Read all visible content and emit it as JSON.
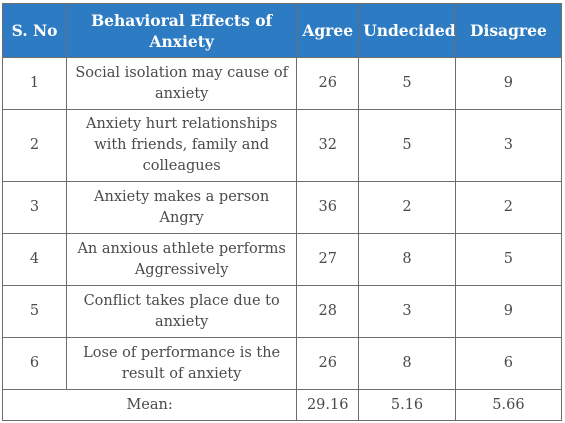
{
  "table": {
    "headers": {
      "sno": "S. No",
      "effect": "Behavioral Effects of Anxiety",
      "agree": "Agree",
      "undecided": "Undecided",
      "disagree": "Disagree"
    },
    "rows": [
      {
        "sno": "1",
        "effect": "Social isolation may cause of anxiety",
        "agree": "26",
        "undecided": "5",
        "disagree": "9"
      },
      {
        "sno": "2",
        "effect": "Anxiety hurt relationships with friends, family and colleagues",
        "agree": "32",
        "undecided": "5",
        "disagree": "3"
      },
      {
        "sno": "3",
        "effect": "Anxiety makes a person Angry",
        "agree": "36",
        "undecided": "2",
        "disagree": "2"
      },
      {
        "sno": "4",
        "effect": "An anxious athlete performs Aggressively",
        "agree": "27",
        "undecided": "8",
        "disagree": "5"
      },
      {
        "sno": "5",
        "effect": "Conflict takes place due to anxiety",
        "agree": "28",
        "undecided": "3",
        "disagree": "9"
      },
      {
        "sno": "6",
        "effect": "Lose of performance is the result of anxiety",
        "agree": "26",
        "undecided": "8",
        "disagree": "6"
      }
    ],
    "mean": {
      "label": "Mean:",
      "agree": "29.16",
      "undecided": "5.16",
      "disagree": "5.66"
    }
  },
  "colors": {
    "header_bg": "#2d7cc3",
    "header_text": "#ffffff",
    "body_text": "#4a4a4a",
    "border": "#6d6d6d"
  }
}
